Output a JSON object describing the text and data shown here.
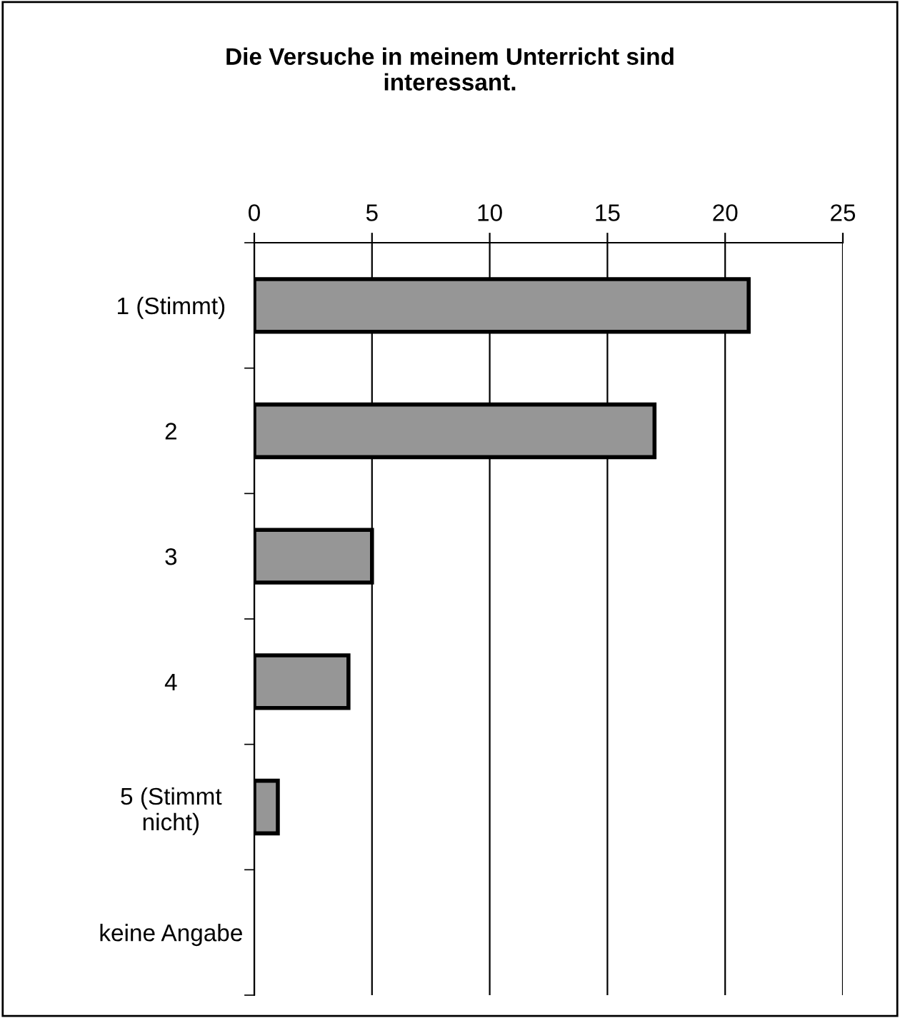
{
  "chart_data": {
    "type": "bar",
    "orientation": "horizontal",
    "title": "Die Versuche in meinem Unterricht sind\ninteressant.",
    "categories": [
      "1 (Stimmt)",
      "2",
      "3",
      "4",
      "5 (Stimmt\nnicht)",
      "keine Angabe"
    ],
    "values": [
      21,
      17,
      5,
      4,
      1,
      0
    ],
    "color": "#969696",
    "xlim": [
      0,
      25
    ],
    "xticks": [
      0,
      5,
      10,
      15,
      20,
      25
    ],
    "grid": "x",
    "legend": false
  }
}
